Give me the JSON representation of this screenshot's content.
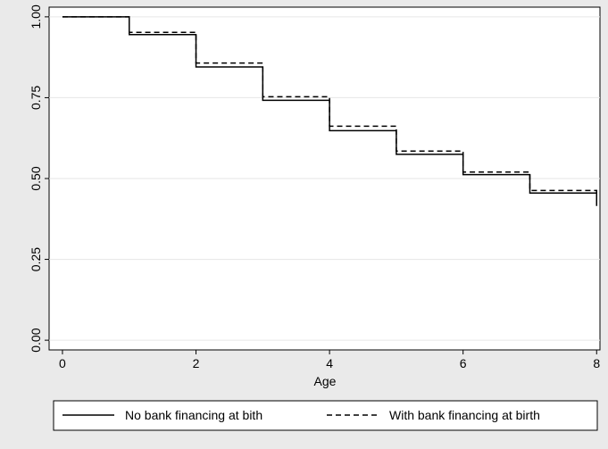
{
  "chart_data": {
    "type": "line",
    "title": "",
    "xlabel": "Age",
    "ylabel": "",
    "xlim": [
      -0.2,
      8.05
    ],
    "ylim": [
      -0.03,
      1.03
    ],
    "xticks": [
      "0",
      "2",
      "4",
      "6",
      "8"
    ],
    "yticks": [
      "0.00",
      "0.25",
      "0.50",
      "0.75",
      "1.00"
    ],
    "grid": true,
    "legend": "bottom",
    "series": [
      {
        "name": "No bank financing at bith",
        "style": "solid",
        "color": "#000000",
        "x": [
          0,
          1,
          2,
          3,
          4,
          5,
          6,
          7,
          8
        ],
        "y": [
          1.0,
          0.945,
          0.845,
          0.742,
          0.648,
          0.575,
          0.512,
          0.455,
          0.415
        ]
      },
      {
        "name": "With bank financing at birth",
        "style": "dashed",
        "color": "#000000",
        "x": [
          0,
          1,
          2,
          3,
          4,
          5,
          6,
          7,
          8
        ],
        "y": [
          1.0,
          0.952,
          0.857,
          0.753,
          0.662,
          0.585,
          0.52,
          0.463,
          0.452
        ]
      }
    ]
  },
  "colors": {
    "background": "#eaeaea",
    "plot_background": "#ffffff",
    "gridline": "#e6e6e6",
    "ink": "#000000"
  }
}
